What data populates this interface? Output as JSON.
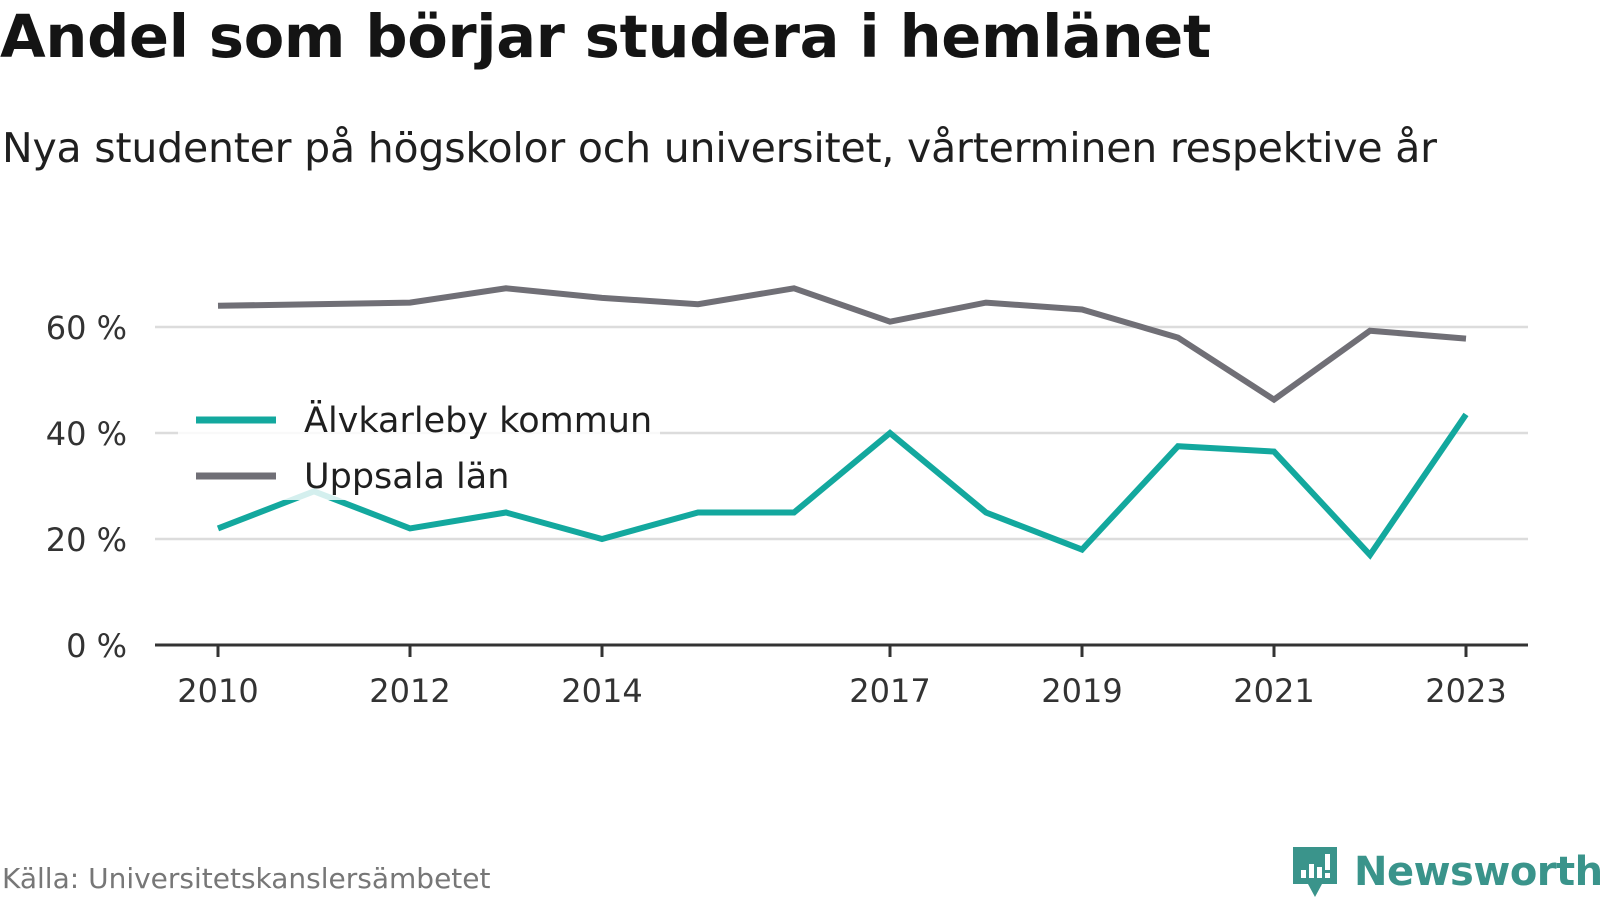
{
  "title": "Andel som börjar studera i hemlänet",
  "subtitle": "Nya studenter på högskolor och universitet, vårterminen respektive år",
  "source": "Källa: Universitetskanslersämbetet",
  "brand": {
    "name": "Newsworthy",
    "icon": "newsworthy-logo-icon"
  },
  "colors": {
    "teal": "#13a89e",
    "gray": "#706f76",
    "grid": "#dcdcdc",
    "axis": "#333333"
  },
  "chart_data": {
    "type": "line",
    "x": [
      2010,
      2011,
      2012,
      2013,
      2014,
      2015,
      2016,
      2017,
      2018,
      2019,
      2020,
      2021,
      2022,
      2023
    ],
    "x_tick_values": [
      2010,
      2012,
      2014,
      2017,
      2019,
      2021,
      2023
    ],
    "x_tick_labels": [
      "2010",
      "2012",
      "2014",
      "2017",
      "2019",
      "2021",
      "2023"
    ],
    "y_ticks": [
      0,
      20,
      40,
      60
    ],
    "y_tick_labels": [
      "0 %",
      "20 %",
      "40 %",
      "60 %"
    ],
    "ylim": [
      0,
      70
    ],
    "grid": true,
    "legend_position": "inside-left",
    "series": [
      {
        "name": "Älvkarleby kommun",
        "color": "#13a89e",
        "values": [
          22,
          29,
          22,
          25,
          20,
          25,
          25,
          40,
          25,
          18,
          37.5,
          36.5,
          17,
          43.5
        ]
      },
      {
        "name": "Uppsala län",
        "color": "#706f76",
        "values": [
          64,
          64.3,
          64.6,
          67.3,
          65.5,
          64.3,
          67.3,
          61,
          64.6,
          63.3,
          58,
          46.3,
          59.3,
          57.8
        ]
      }
    ]
  }
}
